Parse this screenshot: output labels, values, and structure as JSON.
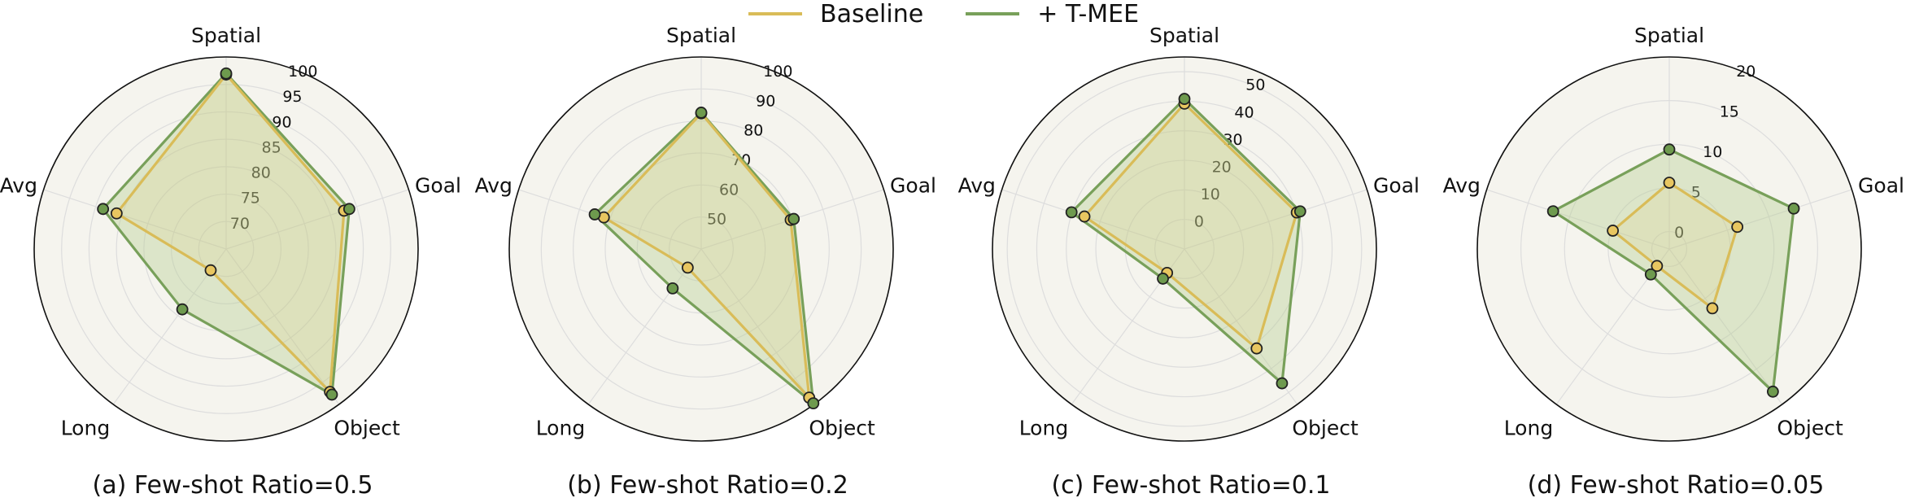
{
  "legend": {
    "items": [
      {
        "label": "Baseline",
        "color": "#d9bc58"
      },
      {
        "label": "+ T-MEE",
        "color": "#78a05a"
      }
    ]
  },
  "colors": {
    "baseline_line": "#d9bc58",
    "baseline_marker": "#e8c660",
    "tmee_line": "#78a05a",
    "tmee_marker": "#6e9a4e",
    "tmee_fill": "#b9cf95",
    "panel_bg": "#f5f4ee",
    "grid": "#dddddd"
  },
  "chart_data": [
    {
      "type": "radar",
      "caption": "(a) Few-shot Ratio=0.5",
      "axes": [
        "Spatial",
        "Goal",
        "Object",
        "Long",
        "Avg"
      ],
      "rlim": [
        65,
        100
      ],
      "rticks": [
        70,
        75,
        80,
        85,
        90,
        95,
        100
      ],
      "series": [
        {
          "name": "Baseline",
          "values": [
            96.8,
            87.6,
            97.2,
            69.8,
            86.0
          ]
        },
        {
          "name": "+ T-MEE",
          "values": [
            97.0,
            88.6,
            97.8,
            78.6,
            88.6
          ]
        }
      ]
    },
    {
      "type": "radar",
      "caption": "(b) Few-shot Ratio=0.2",
      "axes": [
        "Spatial",
        "Goal",
        "Object",
        "Long",
        "Avg"
      ],
      "rlim": [
        40,
        100
      ],
      "rticks": [
        50,
        60,
        70,
        80,
        90,
        100
      ],
      "series": [
        {
          "name": "Baseline",
          "values": [
            82.4,
            69.4,
            97.4,
            47.2,
            72.0
          ]
        },
        {
          "name": "+ T-MEE",
          "values": [
            82.6,
            70.4,
            99.6,
            55.2,
            75.0
          ]
        }
      ]
    },
    {
      "type": "radar",
      "caption": "(c) Few-shot Ratio=0.1",
      "axes": [
        "Spatial",
        "Goal",
        "Object",
        "Long",
        "Avg"
      ],
      "rlim": [
        -10,
        55
      ],
      "rticks": [
        0,
        10,
        20,
        30,
        40,
        50
      ],
      "series": [
        {
          "name": "Baseline",
          "values": [
            39.2,
            30.0,
            31.6,
            0.0,
            25.6
          ]
        },
        {
          "name": "+ T-MEE",
          "values": [
            40.8,
            31.2,
            46.2,
            2.4,
            30.2
          ]
        }
      ]
    },
    {
      "type": "radar",
      "caption": "(d) Few-shot Ratio=0.05",
      "axes": [
        "Spatial",
        "Goal",
        "Object",
        "Long",
        "Avg"
      ],
      "rlim": [
        -2,
        20
      ],
      "rticks": [
        0,
        5,
        10,
        15,
        20
      ],
      "series": [
        {
          "name": "Baseline",
          "values": [
            5.6,
            6.2,
            6.4,
            0.4,
            4.8
          ]
        },
        {
          "name": "+ T-MEE",
          "values": [
            9.4,
            13.0,
            18.2,
            1.6,
            12.0
          ]
        }
      ]
    }
  ]
}
